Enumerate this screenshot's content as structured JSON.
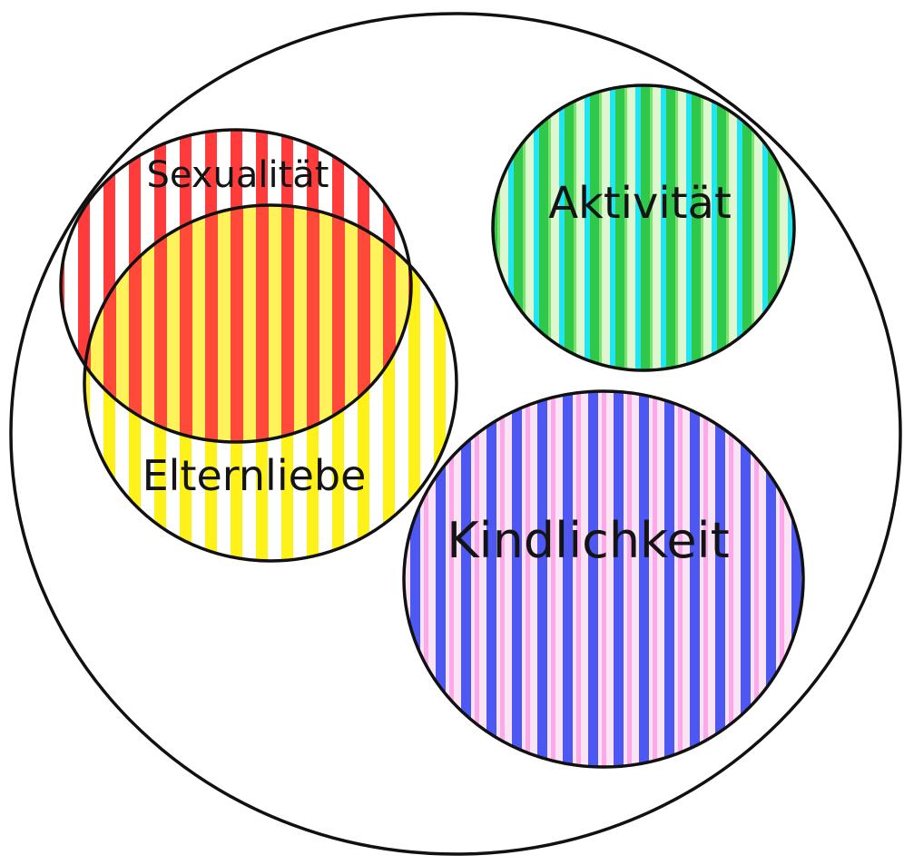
{
  "diagram": {
    "circles": [
      {
        "id": "sexualitaet",
        "label": "Sexualität",
        "color": "#ff3b3b"
      },
      {
        "id": "elternliebe",
        "label": "Elternliebe",
        "color": "#fff21a"
      },
      {
        "id": "aktivitaet",
        "label": "Aktivität",
        "color": "#2fd24a",
        "secondary_color": "#19e6f0"
      },
      {
        "id": "kindlichkeit",
        "label": "Kindlichkeit",
        "color": "#4d57f2",
        "secondary_color": "#ff58d6"
      }
    ],
    "outer_ring_color": "#111111",
    "fill_style": "vertical stripes"
  }
}
